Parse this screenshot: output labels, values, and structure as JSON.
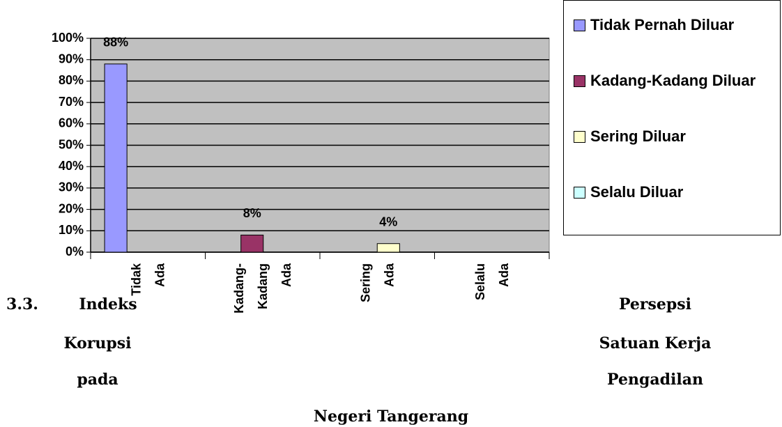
{
  "chart_data": {
    "type": "bar",
    "categories": [
      "Tidak Ada",
      "Kadang-Kadang Ada",
      "Sering Ada",
      "Selalu Ada"
    ],
    "series": [
      {
        "name": "Tidak Pernah Diluar",
        "color": "#9999ff",
        "values": [
          88,
          null,
          null,
          null
        ],
        "value_labels": [
          "88%",
          null,
          null,
          null
        ]
      },
      {
        "name": "Kadang-Kadang Diluar",
        "color": "#993366",
        "values": [
          null,
          8,
          null,
          null
        ],
        "value_labels": [
          null,
          "8%",
          null,
          null
        ]
      },
      {
        "name": "Sering Diluar",
        "color": "#ffffcc",
        "values": [
          null,
          null,
          4,
          null
        ],
        "value_labels": [
          null,
          null,
          "4%",
          null
        ]
      },
      {
        "name": "Selalu Diluar",
        "color": "#ccffff",
        "values": [
          null,
          null,
          null,
          null
        ],
        "value_labels": [
          null,
          null,
          null,
          null
        ]
      }
    ],
    "ylim": [
      0,
      100
    ],
    "yticks": [
      {
        "value": 0,
        "label": "0%"
      },
      {
        "value": 10,
        "label": "10%"
      },
      {
        "value": 20,
        "label": "20%"
      },
      {
        "value": 30,
        "label": "30%"
      },
      {
        "value": 40,
        "label": "40%"
      },
      {
        "value": 50,
        "label": "50%"
      },
      {
        "value": 60,
        "label": "60%"
      },
      {
        "value": 70,
        "label": "70%"
      },
      {
        "value": 80,
        "label": "80%"
      },
      {
        "value": 90,
        "label": "90%"
      },
      {
        "value": 100,
        "label": "100%"
      }
    ],
    "grid": true,
    "legend": "right",
    "plot_background": "#c0c0c0"
  },
  "heading": {
    "number": "3.3.",
    "left": [
      "Indeks",
      "Korupsi",
      "pada"
    ],
    "right": [
      "Persepsi",
      "Satuan Kerja",
      "Pengadilan"
    ],
    "last": "Negeri Tangerang"
  }
}
